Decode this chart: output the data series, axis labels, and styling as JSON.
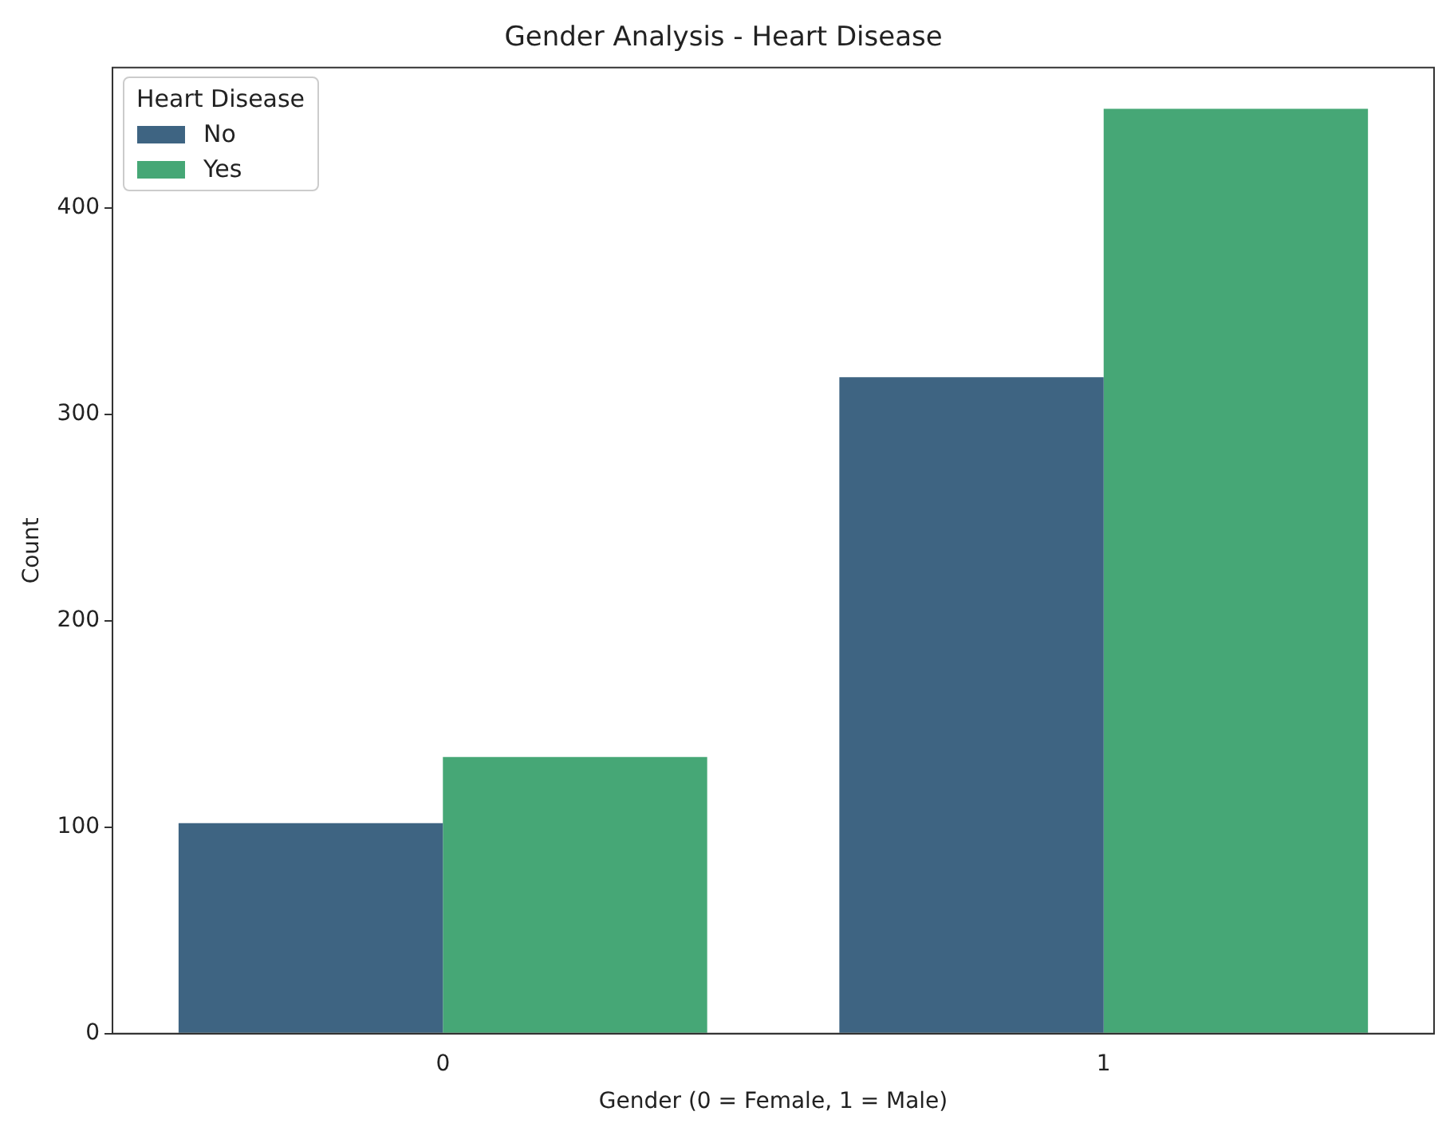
{
  "chart_data": {
    "type": "bar",
    "title": "Gender Analysis - Heart Disease",
    "xlabel": "Gender (0 = Female, 1 = Male)",
    "ylabel": "Count",
    "legend_title": "Heart Disease",
    "categories": [
      "0",
      "1"
    ],
    "series": [
      {
        "name": "No",
        "color": "#3e6482",
        "values": [
          102,
          318
        ]
      },
      {
        "name": "Yes",
        "color": "#46a776",
        "values": [
          134,
          448
        ]
      }
    ],
    "ylim": [
      0,
      468
    ],
    "yticks": [
      0,
      100,
      200,
      300,
      400
    ],
    "grid": false,
    "legend": "top left"
  }
}
